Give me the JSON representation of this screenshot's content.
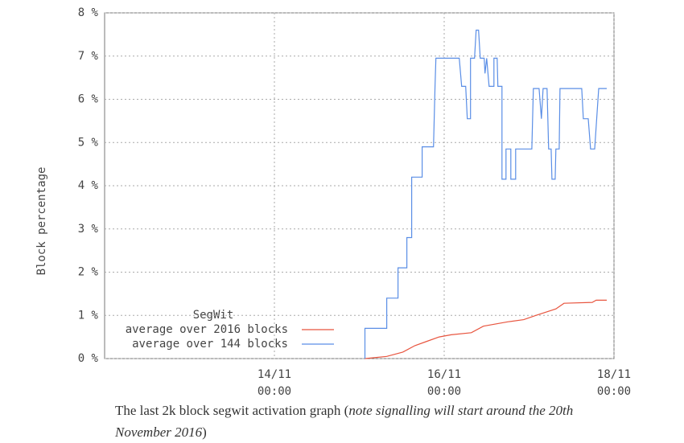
{
  "chart_data": {
    "type": "line",
    "ylabel": "Block percentage",
    "legend_title": "SegWit",
    "legend": "lower-left",
    "grid": true,
    "ylim": [
      0,
      8
    ],
    "yticks": [
      {
        "value": 0,
        "label": "0 %"
      },
      {
        "value": 1,
        "label": "1 %"
      },
      {
        "value": 2,
        "label": "2 %"
      },
      {
        "value": 3,
        "label": "3 %"
      },
      {
        "value": 4,
        "label": "4 %"
      },
      {
        "value": 5,
        "label": "5 %"
      },
      {
        "value": 6,
        "label": "6 %"
      },
      {
        "value": 7,
        "label": "7 %"
      },
      {
        "value": 8,
        "label": "8 %"
      }
    ],
    "xlim": [
      "12/11 00:00",
      "18/11 00:00"
    ],
    "xticks": [
      "14/11 00:00",
      "16/11 00:00",
      "18/11 00:00"
    ],
    "series": [
      {
        "name": "average over 2016 blocks",
        "color": "#e8553f",
        "x": [
          "15/11 01:36",
          "15/11 07:45",
          "15/11 12:18",
          "15/11 15:43",
          "15/11 19:08",
          "15/11 22:34",
          "16/11 01:58",
          "16/11 07:40",
          "16/11 11:05",
          "16/11 17:55",
          "16/11 22:29",
          "17/11 01:54",
          "17/11 07:35",
          "17/11 09:52",
          "17/11 17:50",
          "17/11 18:59",
          "17/11 21:57"
        ],
        "values": [
          0,
          0.05,
          0.15,
          0.3,
          0.4,
          0.5,
          0.55,
          0.6,
          0.75,
          0.85,
          0.9,
          1.0,
          1.15,
          1.28,
          1.3,
          1.35,
          1.35
        ]
      },
      {
        "name": "average over 144 blocks",
        "color": "#5a8ee6",
        "x": [
          "15/11 01:36",
          "15/11 01:36",
          "15/11 07:45",
          "15/11 07:45",
          "15/11 10:56",
          "15/11 10:56",
          "15/11 13:26",
          "15/11 13:26",
          "15/11 14:49",
          "15/11 14:49",
          "15/11 17:46",
          "15/11 17:46",
          "15/11 20:58",
          "15/11 21:25",
          "15/11 21:39",
          "16/11 04:15",
          "16/11 04:56",
          "16/11 06:05",
          "16/11 06:32",
          "16/11 07:26",
          "16/11 07:26",
          "16/11 08:35",
          "16/11 09:02",
          "16/11 09:43",
          "16/11 10:11",
          "16/11 11:19",
          "16/11 11:32",
          "16/11 12:00",
          "16/11 12:41",
          "16/11 14:03",
          "16/11 14:03",
          "16/11 14:58",
          "16/11 15:11",
          "16/11 16:20",
          "16/11 16:20",
          "16/11 17:28",
          "16/11 17:28",
          "16/11 18:50",
          "16/11 18:50",
          "16/11 20:12",
          "16/11 20:12",
          "17/11 00:46",
          "17/11 01:13",
          "17/11 02:49",
          "17/11 03:29",
          "17/11 03:57",
          "17/11 05:05",
          "17/11 05:32",
          "17/11 06:14",
          "17/11 06:27",
          "17/11 07:22",
          "17/11 07:35",
          "17/11 08:30",
          "17/11 08:44",
          "17/11 14:53",
          "17/11 15:20",
          "17/11 16:43",
          "17/11 17:23",
          "17/11 18:32",
          "17/11 19:40",
          "17/11 21:57"
        ],
        "values": [
          0,
          0.7,
          0.7,
          1.4,
          1.4,
          2.1,
          2.1,
          2.8,
          2.8,
          4.2,
          4.2,
          4.9,
          4.9,
          6.3,
          6.95,
          6.95,
          6.3,
          6.3,
          5.55,
          5.55,
          6.95,
          6.95,
          7.6,
          7.6,
          6.95,
          6.95,
          6.6,
          6.95,
          6.3,
          6.3,
          6.95,
          6.95,
          6.3,
          6.3,
          4.15,
          4.15,
          4.85,
          4.85,
          4.15,
          4.15,
          4.85,
          4.85,
          6.25,
          6.25,
          5.55,
          6.25,
          6.25,
          4.85,
          4.85,
          4.15,
          4.15,
          4.85,
          4.85,
          6.25,
          6.25,
          5.55,
          5.55,
          4.85,
          4.85,
          6.25,
          6.25
        ]
      }
    ]
  },
  "caption": {
    "text": "The last 2k block segwit activation graph (",
    "note": "note signalling will start around the 20th November 2016",
    "close": ")"
  }
}
